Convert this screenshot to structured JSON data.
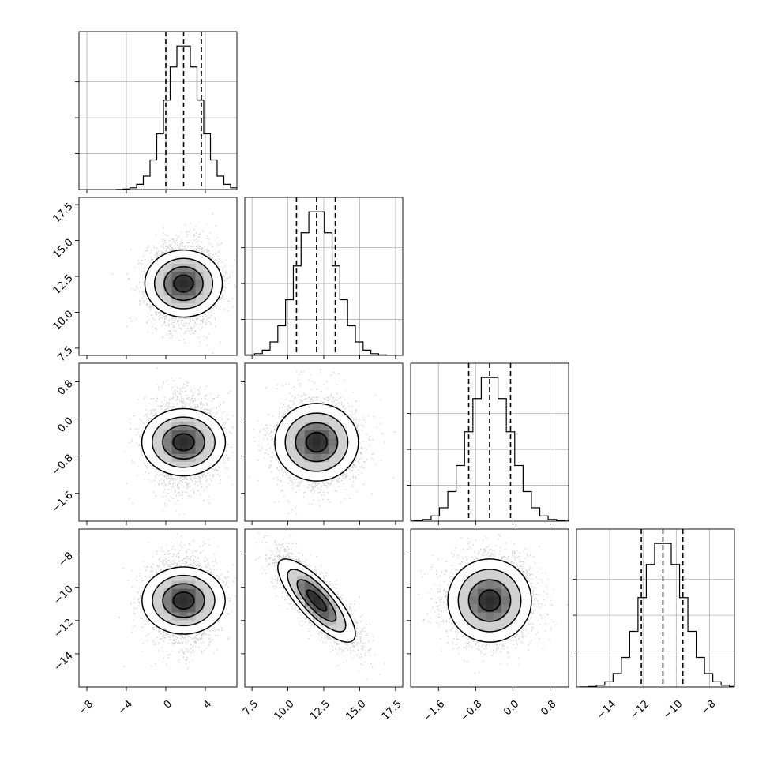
{
  "chart_data": {
    "type": "corner",
    "parameters": [
      {
        "lim": [
          -8.8,
          7.2
        ],
        "ticks": [
          -8,
          -4,
          0,
          4
        ],
        "tick_labels": [
          "−8",
          "−4",
          "0",
          "4"
        ],
        "mean": 1.8,
        "std": 1.7,
        "quantiles": [
          0.0,
          1.8,
          3.6
        ]
      },
      {
        "lim": [
          7.0,
          18.0
        ],
        "ticks": [
          7.5,
          10.0,
          12.5,
          15.0,
          17.5
        ],
        "tick_labels": [
          "7.5",
          "10.0",
          "12.5",
          "15.0",
          "17.5"
        ],
        "mean": 12.0,
        "std": 1.35,
        "quantiles": [
          10.6,
          12.0,
          13.3
        ]
      },
      {
        "lim": [
          -2.2,
          1.2
        ],
        "ticks": [
          -1.6,
          -0.8,
          0.0,
          0.8
        ],
        "tick_labels": [
          "−1.6",
          "−0.8",
          "0.0",
          "0.8"
        ],
        "mean": -0.5,
        "std": 0.45,
        "quantiles": [
          -0.95,
          -0.5,
          -0.05
        ]
      },
      {
        "lim": [
          -16.0,
          -6.5
        ],
        "ticks": [
          -14,
          -12,
          -10,
          -8
        ],
        "tick_labels": [
          "−14",
          "−12",
          "−10",
          "−8"
        ],
        "mean": -10.8,
        "std": 1.25,
        "quantiles": [
          -12.1,
          -10.8,
          -9.6
        ]
      }
    ],
    "correlations": [
      [
        1.0,
        0.0,
        0.0,
        0.0
      ],
      [
        0.0,
        1.0,
        0.0,
        -0.8
      ],
      [
        0.0,
        0.0,
        1.0,
        0.0
      ],
      [
        0.0,
        -0.8,
        0.0,
        1.0
      ]
    ],
    "histogram_bins": 20,
    "quantile_levels": [
      0.16,
      0.5,
      0.84
    ],
    "contour_levels": [
      0.5,
      1.0,
      1.5,
      2.0
    ],
    "grid": true,
    "colors": {
      "lines": "#000000",
      "density": "#000000",
      "points": "#bbbbbb",
      "grid": "#b0b0b0"
    }
  }
}
